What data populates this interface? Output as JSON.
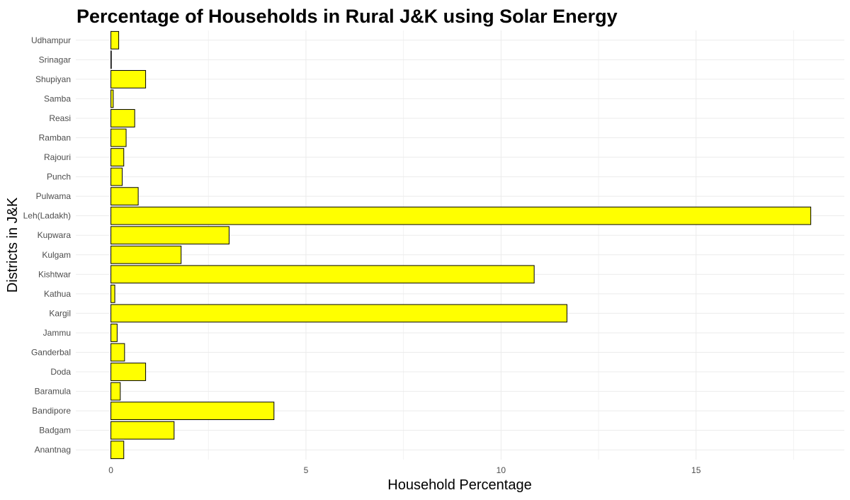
{
  "chart_data": {
    "type": "bar",
    "orientation": "horizontal",
    "title": "Percentage of Households in Rural J&K using Solar Energy",
    "xlabel": "Household Percentage",
    "ylabel": "Districts in J&K",
    "categories": [
      "Anantnag",
      "Badgam",
      "Bandipore",
      "Baramula",
      "Doda",
      "Ganderbal",
      "Jammu",
      "Kargil",
      "Kathua",
      "Kishtwar",
      "Kulgam",
      "Kupwara",
      "Leh(Ladakh)",
      "Pulwama",
      "Punch",
      "Rajouri",
      "Ramban",
      "Reasi",
      "Samba",
      "Shupiyan",
      "Srinagar",
      "Udhampur"
    ],
    "values": [
      0.33,
      1.62,
      4.18,
      0.24,
      0.89,
      0.35,
      0.16,
      11.69,
      0.1,
      10.85,
      1.8,
      3.03,
      17.94,
      0.7,
      0.29,
      0.33,
      0.39,
      0.61,
      0.06,
      0.89,
      0.01,
      0.2
    ],
    "xlim": [
      -0.9,
      18.8
    ],
    "xticks": [
      "0",
      "5",
      "10",
      "15"
    ],
    "grid": true,
    "bar_color": "#ffff00",
    "bar_outline": "#000000"
  }
}
